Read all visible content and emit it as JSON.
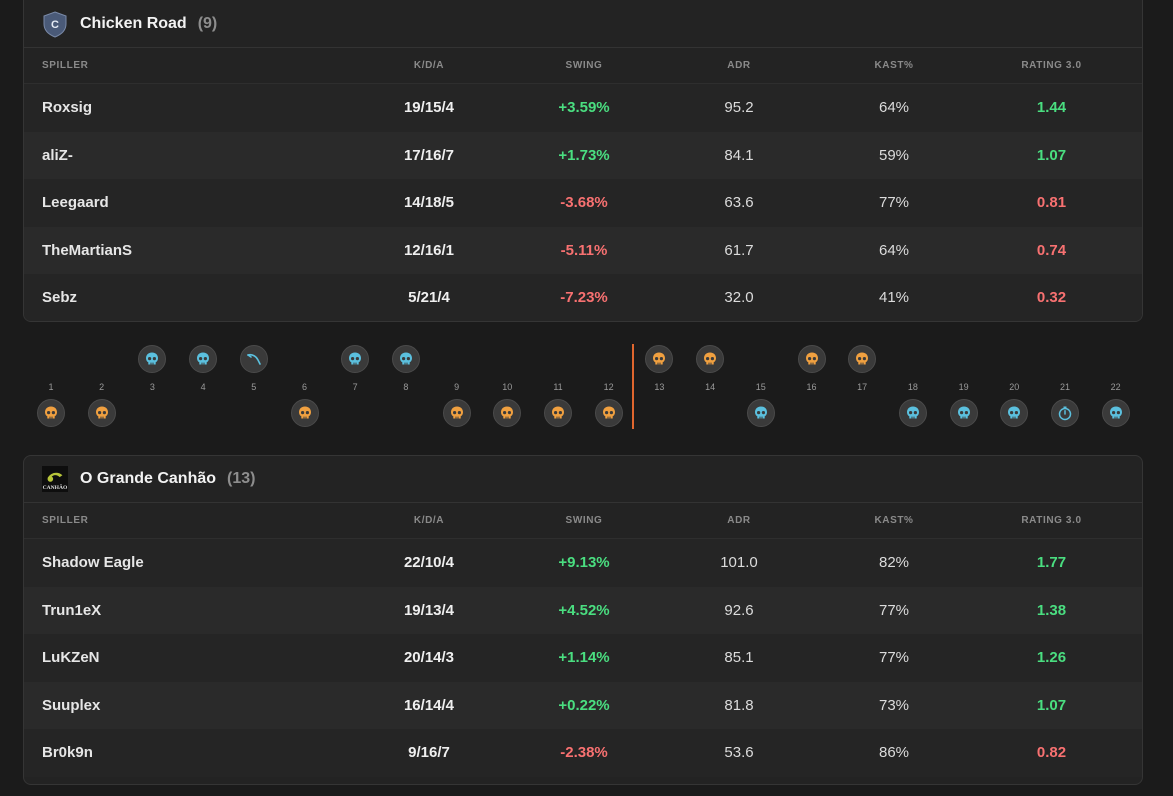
{
  "columns": {
    "player": "SPILLER",
    "kda": "K/D/A",
    "swing": "SWING",
    "adr": "ADR",
    "kast": "KAST%",
    "rating": "RATING 3.0"
  },
  "team1": {
    "logo_letter": "C",
    "name": "Chicken Road",
    "score": "(9)",
    "players": [
      {
        "name": "Roxsig",
        "kda": "19/15/4",
        "swing": "+3.59%",
        "adr": "95.2",
        "kast": "64%",
        "rating": "1.44"
      },
      {
        "name": "aliZ-",
        "kda": "17/16/7",
        "swing": "+1.73%",
        "adr": "84.1",
        "kast": "59%",
        "rating": "1.07"
      },
      {
        "name": "Leegaard",
        "kda": "14/18/5",
        "swing": "-3.68%",
        "adr": "63.6",
        "kast": "77%",
        "rating": "0.81"
      },
      {
        "name": "TheMartianS",
        "kda": "12/16/1",
        "swing": "-5.11%",
        "adr": "61.7",
        "kast": "64%",
        "rating": "0.74"
      },
      {
        "name": "Sebz",
        "kda": "5/21/4",
        "swing": "-7.23%",
        "adr": "32.0",
        "kast": "41%",
        "rating": "0.32"
      }
    ]
  },
  "team2": {
    "logo_text": "CANHÃO",
    "name": "O Grande Canhão",
    "score": "(13)",
    "players": [
      {
        "name": "Shadow Eagle",
        "kda": "22/10/4",
        "swing": "+9.13%",
        "adr": "101.0",
        "kast": "82%",
        "rating": "1.77"
      },
      {
        "name": "Trun1eX",
        "kda": "19/13/4",
        "swing": "+4.52%",
        "adr": "92.6",
        "kast": "77%",
        "rating": "1.38"
      },
      {
        "name": "LuKZeN",
        "kda": "20/14/3",
        "swing": "+1.14%",
        "adr": "85.1",
        "kast": "77%",
        "rating": "1.26"
      },
      {
        "name": "Suuplex",
        "kda": "16/14/4",
        "swing": "+0.22%",
        "adr": "81.8",
        "kast": "73%",
        "rating": "1.07"
      },
      {
        "name": "Br0k9n",
        "kda": "9/16/7",
        "swing": "-2.38%",
        "adr": "53.6",
        "kast": "86%",
        "rating": "0.82"
      }
    ]
  },
  "rounds": [
    {
      "num": "1",
      "winner": "team2",
      "icon": "skull",
      "color": "#f0a040"
    },
    {
      "num": "2",
      "winner": "team2",
      "icon": "skull",
      "color": "#f0a040"
    },
    {
      "num": "3",
      "winner": "team1",
      "icon": "skull",
      "color": "#5bc0de"
    },
    {
      "num": "4",
      "winner": "team1",
      "icon": "skull",
      "color": "#5bc0de"
    },
    {
      "num": "5",
      "winner": "team1",
      "icon": "defuse",
      "color": "#5bc0de"
    },
    {
      "num": "6",
      "winner": "team2",
      "icon": "skull",
      "color": "#f0a040"
    },
    {
      "num": "7",
      "winner": "team1",
      "icon": "skull",
      "color": "#5bc0de"
    },
    {
      "num": "8",
      "winner": "team1",
      "icon": "skull",
      "color": "#5bc0de"
    },
    {
      "num": "9",
      "winner": "team2",
      "icon": "skull",
      "color": "#f0a040"
    },
    {
      "num": "10",
      "winner": "team2",
      "icon": "skull",
      "color": "#f0a040"
    },
    {
      "num": "11",
      "winner": "team2",
      "icon": "skull",
      "color": "#f0a040"
    },
    {
      "num": "12",
      "winner": "team2",
      "icon": "skull",
      "color": "#f0a040"
    },
    {
      "num": "13",
      "winner": "team1",
      "icon": "skull",
      "color": "#f0a040"
    },
    {
      "num": "14",
      "winner": "team1",
      "icon": "skull",
      "color": "#f0a040"
    },
    {
      "num": "15",
      "winner": "team2",
      "icon": "skull",
      "color": "#5bc0de"
    },
    {
      "num": "16",
      "winner": "team1",
      "icon": "skull",
      "color": "#f0a040"
    },
    {
      "num": "17",
      "winner": "team1",
      "icon": "skull",
      "color": "#f0a040"
    },
    {
      "num": "18",
      "winner": "team2",
      "icon": "skull",
      "color": "#5bc0de"
    },
    {
      "num": "19",
      "winner": "team2",
      "icon": "skull",
      "color": "#5bc0de"
    },
    {
      "num": "20",
      "winner": "team2",
      "icon": "skull",
      "color": "#5bc0de"
    },
    {
      "num": "21",
      "winner": "team2",
      "icon": "stopwatch",
      "color": "#5bc0de"
    },
    {
      "num": "22",
      "winner": "team2",
      "icon": "skull",
      "color": "#5bc0de"
    }
  ]
}
